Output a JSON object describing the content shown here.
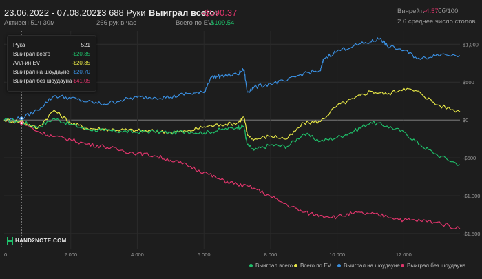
{
  "header": {
    "date_range": "23.06.2022 - 07.08.2022",
    "active": "Активен 51ч 30м",
    "hands_count": "13 688 Руки",
    "hands_per_hour": "266 рук в час",
    "won_total_label": "Выиграл всего:",
    "won_total_value": "-$590.37",
    "ev_label": "Всего по EV:",
    "ev_value": "$109.54",
    "winrate_label": "Винрейт:",
    "winrate_value": "-4.57",
    "winrate_unit": "бб/100",
    "tables": "2.6 среднее число столов"
  },
  "tooltip": {
    "rows": [
      {
        "label": "Рука",
        "value": "521",
        "color": "#d8d8d8"
      },
      {
        "label": "Выиграл всего",
        "value": "-$20.35",
        "color": "#1fbf6a"
      },
      {
        "label": "Алл-ин EV",
        "value": "-$20.35",
        "color": "#e6e646"
      },
      {
        "label": "Выиграл на шоудауне",
        "value": "$20.70",
        "color": "#3a8fe0"
      },
      {
        "label": "Выиграл без шоудауна",
        "value": "-$41.05",
        "color": "#e0356c"
      }
    ]
  },
  "logo": {
    "text": "HAND2NOTE.COM"
  },
  "colors": {
    "positive": "#1fbf6a",
    "negative": "#e0356c",
    "ev": "#1fbf6a",
    "winrate": "#e0356c"
  },
  "chart_data": {
    "type": "line",
    "x_ticks": [
      0,
      2000,
      4000,
      6000,
      8000,
      10000,
      12000
    ],
    "x_tick_labels": [
      "0",
      "2 000",
      "4 000",
      "6 000",
      "8 000",
      "10 000",
      "12 000"
    ],
    "y_ticks": [
      1000,
      500,
      0,
      -500,
      -1000,
      -1500
    ],
    "y_tick_labels": [
      "$1,000",
      "$500",
      "$0",
      "-$500",
      "-$1,000",
      "-$1,500"
    ],
    "xlim": [
      0,
      13688
    ],
    "ylim": [
      -1600,
      1130
    ],
    "grid": true,
    "legend_position": "bottom-right",
    "series": [
      {
        "name": "Выиграл всего",
        "color": "#1fbf6a",
        "x": [
          0,
          521,
          1000,
          1500,
          2000,
          2500,
          3000,
          3500,
          4000,
          4500,
          5000,
          5500,
          6000,
          6500,
          7000,
          7200,
          7300,
          7500,
          8000,
          8500,
          9000,
          9500,
          10000,
          10500,
          11000,
          11500,
          12000,
          12500,
          13000,
          13688
        ],
        "y": [
          0,
          -20,
          -100,
          20,
          -60,
          -120,
          -140,
          -150,
          -160,
          -150,
          -170,
          -150,
          -170,
          -130,
          -100,
          -80,
          -330,
          -400,
          -330,
          -350,
          -180,
          -280,
          -230,
          -150,
          -30,
          -80,
          -160,
          -330,
          -460,
          -590
        ]
      },
      {
        "name": "Всего по EV",
        "color": "#e6e646",
        "x": [
          0,
          521,
          1000,
          1500,
          2000,
          2500,
          3000,
          3500,
          4000,
          4500,
          5000,
          5500,
          6000,
          6500,
          7000,
          7200,
          7300,
          7500,
          8000,
          8500,
          9000,
          9500,
          10000,
          10500,
          11000,
          11500,
          12000,
          12500,
          13000,
          13688
        ],
        "y": [
          0,
          -20,
          -110,
          130,
          -40,
          -110,
          -120,
          -130,
          -140,
          -150,
          -160,
          -150,
          -90,
          -60,
          -40,
          40,
          -190,
          -260,
          -210,
          -250,
          -40,
          -20,
          190,
          280,
          380,
          340,
          420,
          360,
          200,
          110
        ]
      },
      {
        "name": "Выиграл на шоудауне",
        "color": "#3a8fe0",
        "x": [
          0,
          521,
          1000,
          1500,
          2000,
          2500,
          3000,
          3500,
          4000,
          4500,
          5000,
          5500,
          6000,
          6200,
          6500,
          7000,
          7200,
          7300,
          7500,
          8000,
          8500,
          9000,
          9500,
          9600,
          10000,
          10500,
          11000,
          11300,
          11500,
          12000,
          12500,
          13000,
          13688
        ],
        "y": [
          0,
          20,
          130,
          320,
          290,
          240,
          210,
          260,
          300,
          300,
          300,
          350,
          360,
          560,
          580,
          600,
          670,
          370,
          430,
          480,
          520,
          620,
          650,
          810,
          910,
          980,
          1030,
          1080,
          980,
          920,
          800,
          870,
          850
        ]
      },
      {
        "name": "Выиграл без шоудауна",
        "color": "#e0356c",
        "x": [
          0,
          521,
          1000,
          1500,
          2000,
          2500,
          3000,
          3500,
          4000,
          4500,
          5000,
          5500,
          6000,
          6500,
          7000,
          7500,
          8000,
          8500,
          9000,
          9500,
          10000,
          10500,
          11000,
          11500,
          12000,
          12500,
          13000,
          13688
        ],
        "y": [
          0,
          -30,
          -150,
          -220,
          -260,
          -320,
          -350,
          -400,
          -440,
          -470,
          -530,
          -600,
          -690,
          -790,
          -850,
          -900,
          -1010,
          -1120,
          -1220,
          -1260,
          -1280,
          -1230,
          -1240,
          -1270,
          -1320,
          -1330,
          -1350,
          -1440
        ]
      }
    ]
  }
}
